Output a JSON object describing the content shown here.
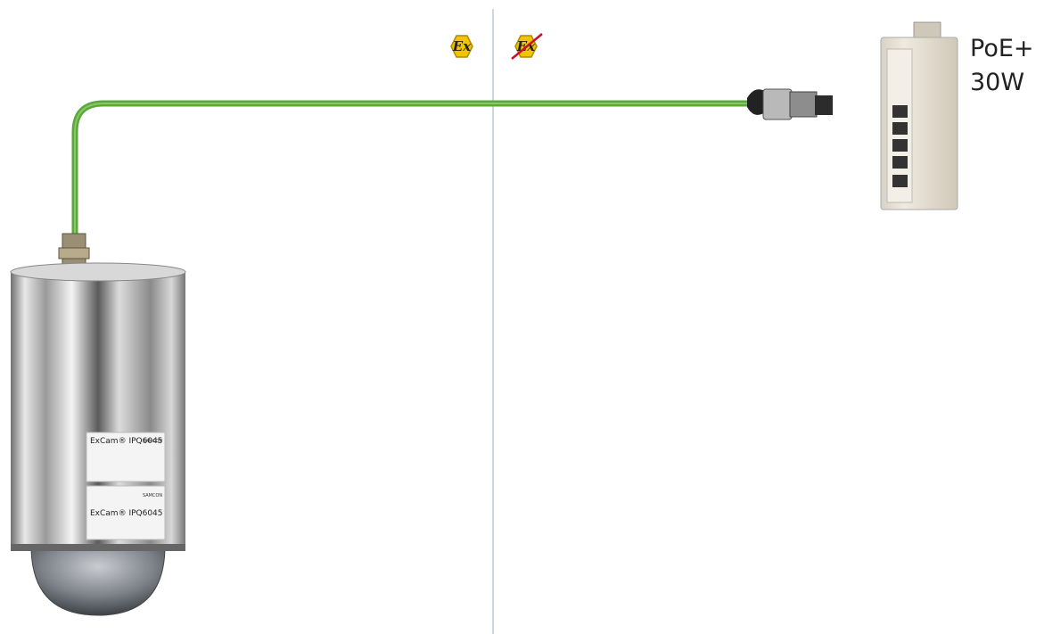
{
  "power_label": {
    "line1": "PoE+",
    "line2": "30W"
  },
  "zones": [
    {
      "symbol": "Ex"
    },
    {
      "symbol": "Ex"
    }
  ],
  "camera": {
    "model": "ExCam® IPQ6045",
    "brand": "SAMCON"
  }
}
